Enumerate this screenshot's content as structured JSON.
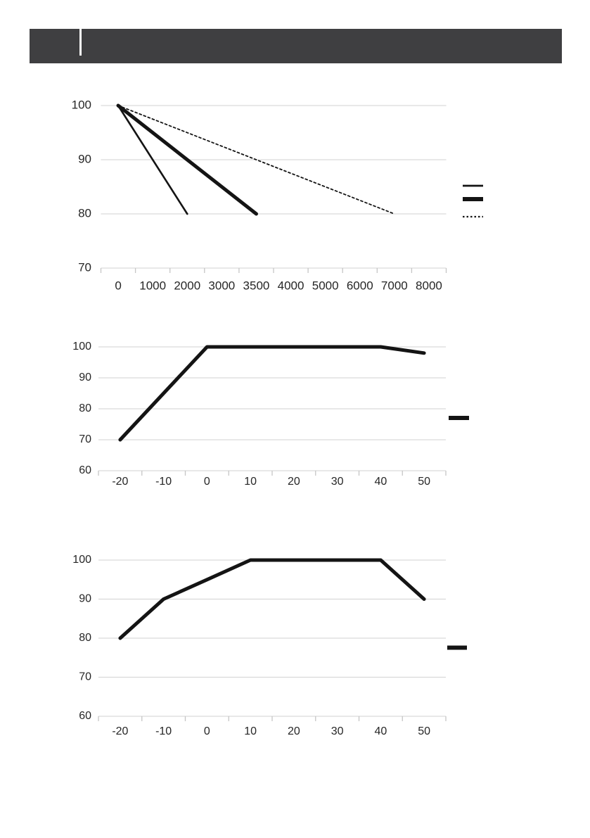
{
  "page": {
    "background": "#ffffff"
  },
  "header": {
    "background": "#3f3f41",
    "divider_color": "#ffffff",
    "title": ""
  },
  "chart_data": [
    {
      "id": "chart-1",
      "type": "line",
      "title": "",
      "xlabel": "",
      "ylabel": "",
      "grid": true,
      "categories": [
        "0",
        "1000",
        "2000",
        "3000",
        "3500",
        "4000",
        "5000",
        "6000",
        "7000",
        "8000"
      ],
      "ylim": [
        70,
        100
      ],
      "yticks": [
        100,
        90,
        80,
        70
      ],
      "legend_position": "right",
      "series": [
        {
          "name": "thin-solid-line",
          "style": "thin-solid",
          "color": "#141414",
          "values": [
            100,
            null,
            80,
            null,
            null,
            null,
            null,
            null,
            null,
            null
          ]
        },
        {
          "name": "thick-solid-line",
          "style": "thick-solid",
          "color": "#141414",
          "values": [
            100,
            null,
            null,
            null,
            80,
            null,
            null,
            null,
            null,
            null
          ]
        },
        {
          "name": "dotted-line",
          "style": "dotted",
          "color": "#141414",
          "values": [
            100,
            null,
            null,
            null,
            null,
            null,
            null,
            null,
            80,
            null
          ]
        }
      ],
      "legend": [
        {
          "style": "thin-solid",
          "label": ""
        },
        {
          "style": "thick-solid",
          "label": ""
        },
        {
          "style": "dotted",
          "label": ""
        }
      ]
    },
    {
      "id": "chart-2",
      "type": "line",
      "title": "",
      "xlabel": "",
      "ylabel": "",
      "grid": true,
      "categories": [
        "-20",
        "-10",
        "0",
        "10",
        "20",
        "30",
        "40",
        "50"
      ],
      "ylim": [
        60,
        100
      ],
      "yticks": [
        100,
        90,
        80,
        70,
        60
      ],
      "legend_position": "right",
      "series": [
        {
          "name": "thick-solid-line",
          "style": "thick-solid",
          "color": "#141414",
          "values": [
            70,
            85,
            100,
            100,
            100,
            100,
            100,
            98
          ]
        }
      ],
      "legend": [
        {
          "style": "thick-solid",
          "label": ""
        }
      ]
    },
    {
      "id": "chart-3",
      "type": "line",
      "title": "",
      "xlabel": "",
      "ylabel": "",
      "grid": true,
      "categories": [
        "-20",
        "-10",
        "0",
        "10",
        "20",
        "30",
        "40",
        "50"
      ],
      "ylim": [
        60,
        100
      ],
      "yticks": [
        100,
        90,
        80,
        70,
        60
      ],
      "legend_position": "right",
      "series": [
        {
          "name": "thick-solid-line",
          "style": "thick-solid",
          "color": "#141414",
          "values": [
            80,
            90,
            95,
            100,
            100,
            100,
            100,
            90
          ]
        }
      ],
      "legend": [
        {
          "style": "thick-solid",
          "label": ""
        }
      ]
    }
  ]
}
